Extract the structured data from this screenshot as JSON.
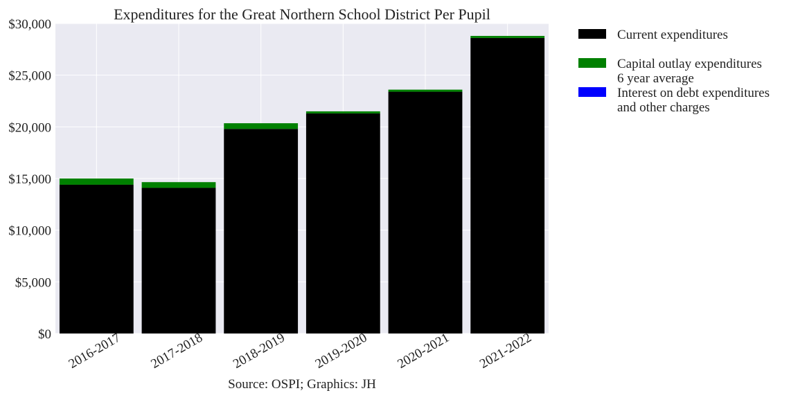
{
  "chart_data": {
    "type": "bar",
    "stacked": true,
    "title": "Expenditures for the Great Northern School District Per Pupil",
    "xlabel": "Source: OSPI; Graphics: JH",
    "ylabel": "",
    "categories": [
      "2016-2017",
      "2017-2018",
      "2018-2019",
      "2019-2020",
      "2020-2021",
      "2021-2022"
    ],
    "series": [
      {
        "name": "Current expenditures",
        "color": "#000000",
        "values": [
          14400,
          14100,
          19800,
          21300,
          23400,
          28600
        ]
      },
      {
        "name": "Capital outlay expenditures\n6 year average",
        "color": "#008000",
        "values": [
          600,
          550,
          550,
          200,
          200,
          200
        ]
      },
      {
        "name": "Interest on debt expenditures\nand other charges",
        "color": "#0000ff",
        "values": [
          0,
          0,
          0,
          0,
          0,
          0
        ]
      }
    ],
    "ylim": [
      0,
      30000
    ],
    "yticks": [
      0,
      5000,
      10000,
      15000,
      20000,
      25000,
      30000
    ],
    "ytick_labels": [
      "$0",
      "$5,000",
      "$10,000",
      "$15,000",
      "$20,000",
      "$25,000",
      "$30,000"
    ],
    "grid": true,
    "legend_position": "outside-right-top",
    "background_color": "#eaeaf2"
  }
}
